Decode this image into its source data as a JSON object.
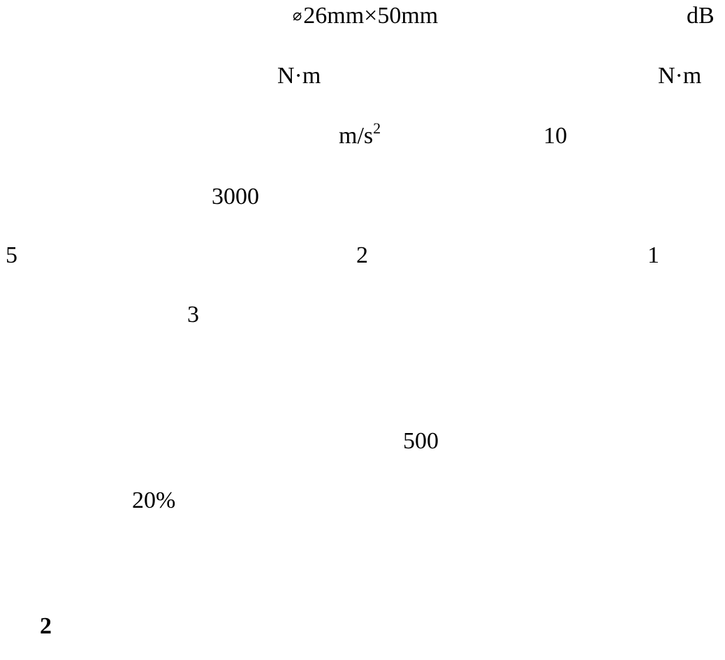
{
  "document": {
    "line1": {
      "diameter_symbol": "⌀",
      "dimension": "26mm×50mm",
      "unit_db": "dB"
    },
    "line2": {
      "torque_unit_1": "N·m",
      "torque_unit_2": "N·m"
    },
    "line3": {
      "accel_unit_base": "m/s",
      "accel_unit_exp": "2",
      "value_10": "10"
    },
    "line4": {
      "value_3000": "3000"
    },
    "line5": {
      "value_5": "5",
      "value_2": "2",
      "value_1": "1"
    },
    "line6": {
      "value_3": "3"
    },
    "line7": {
      "value_500": "500"
    },
    "line8": {
      "value_20pct": "20%"
    },
    "footer": {
      "page_number": "2"
    }
  }
}
